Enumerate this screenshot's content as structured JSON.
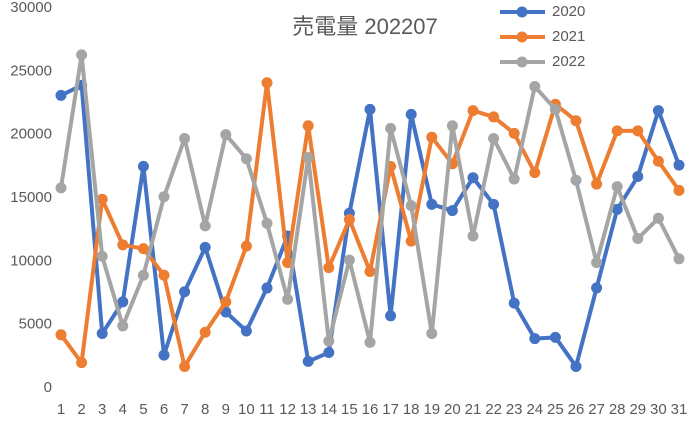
{
  "chart_data": {
    "type": "line",
    "title": "売電量 202207",
    "categories": [
      "1",
      "2",
      "3",
      "4",
      "5",
      "6",
      "7",
      "8",
      "9",
      "10",
      "11",
      "12",
      "13",
      "14",
      "15",
      "16",
      "17",
      "18",
      "19",
      "20",
      "21",
      "22",
      "23",
      "24",
      "25",
      "26",
      "27",
      "28",
      "29",
      "30",
      "31"
    ],
    "series": [
      {
        "name": "2020",
        "color": "#4472c4",
        "values": [
          23100,
          23900,
          4300,
          6800,
          17500,
          2600,
          7600,
          11100,
          6000,
          4500,
          7900,
          12000,
          2100,
          2800,
          13800,
          22000,
          5700,
          21600,
          14500,
          14000,
          16600,
          14500,
          6700,
          3900,
          4000,
          1700,
          7900,
          14100,
          16700,
          21900,
          17600
        ]
      },
      {
        "name": "2021",
        "color": "#ed7d31",
        "values": [
          4200,
          2000,
          14900,
          11300,
          11000,
          8900,
          1700,
          4400,
          6800,
          11200,
          24100,
          9900,
          20700,
          9500,
          13300,
          9200,
          17500,
          11600,
          19800,
          17700,
          21900,
          21400,
          20100,
          17000,
          22400,
          21100,
          16100,
          20300,
          20300,
          17900,
          15600
        ]
      },
      {
        "name": "2022",
        "color": "#a5a5a5",
        "values": [
          15800,
          26300,
          10400,
          4900,
          8900,
          15100,
          19700,
          12800,
          20000,
          18100,
          13000,
          7000,
          18200,
          3700,
          10100,
          3600,
          20500,
          14400,
          4300,
          20700,
          12000,
          19700,
          16500,
          23800,
          22000,
          16400,
          9900,
          15900,
          11800,
          13400,
          10200
        ]
      }
    ],
    "ylim": [
      0,
      30000
    ],
    "yticks": [
      0,
      5000,
      10000,
      15000,
      20000,
      25000,
      30000
    ],
    "grid": false,
    "legend": "top-right"
  }
}
